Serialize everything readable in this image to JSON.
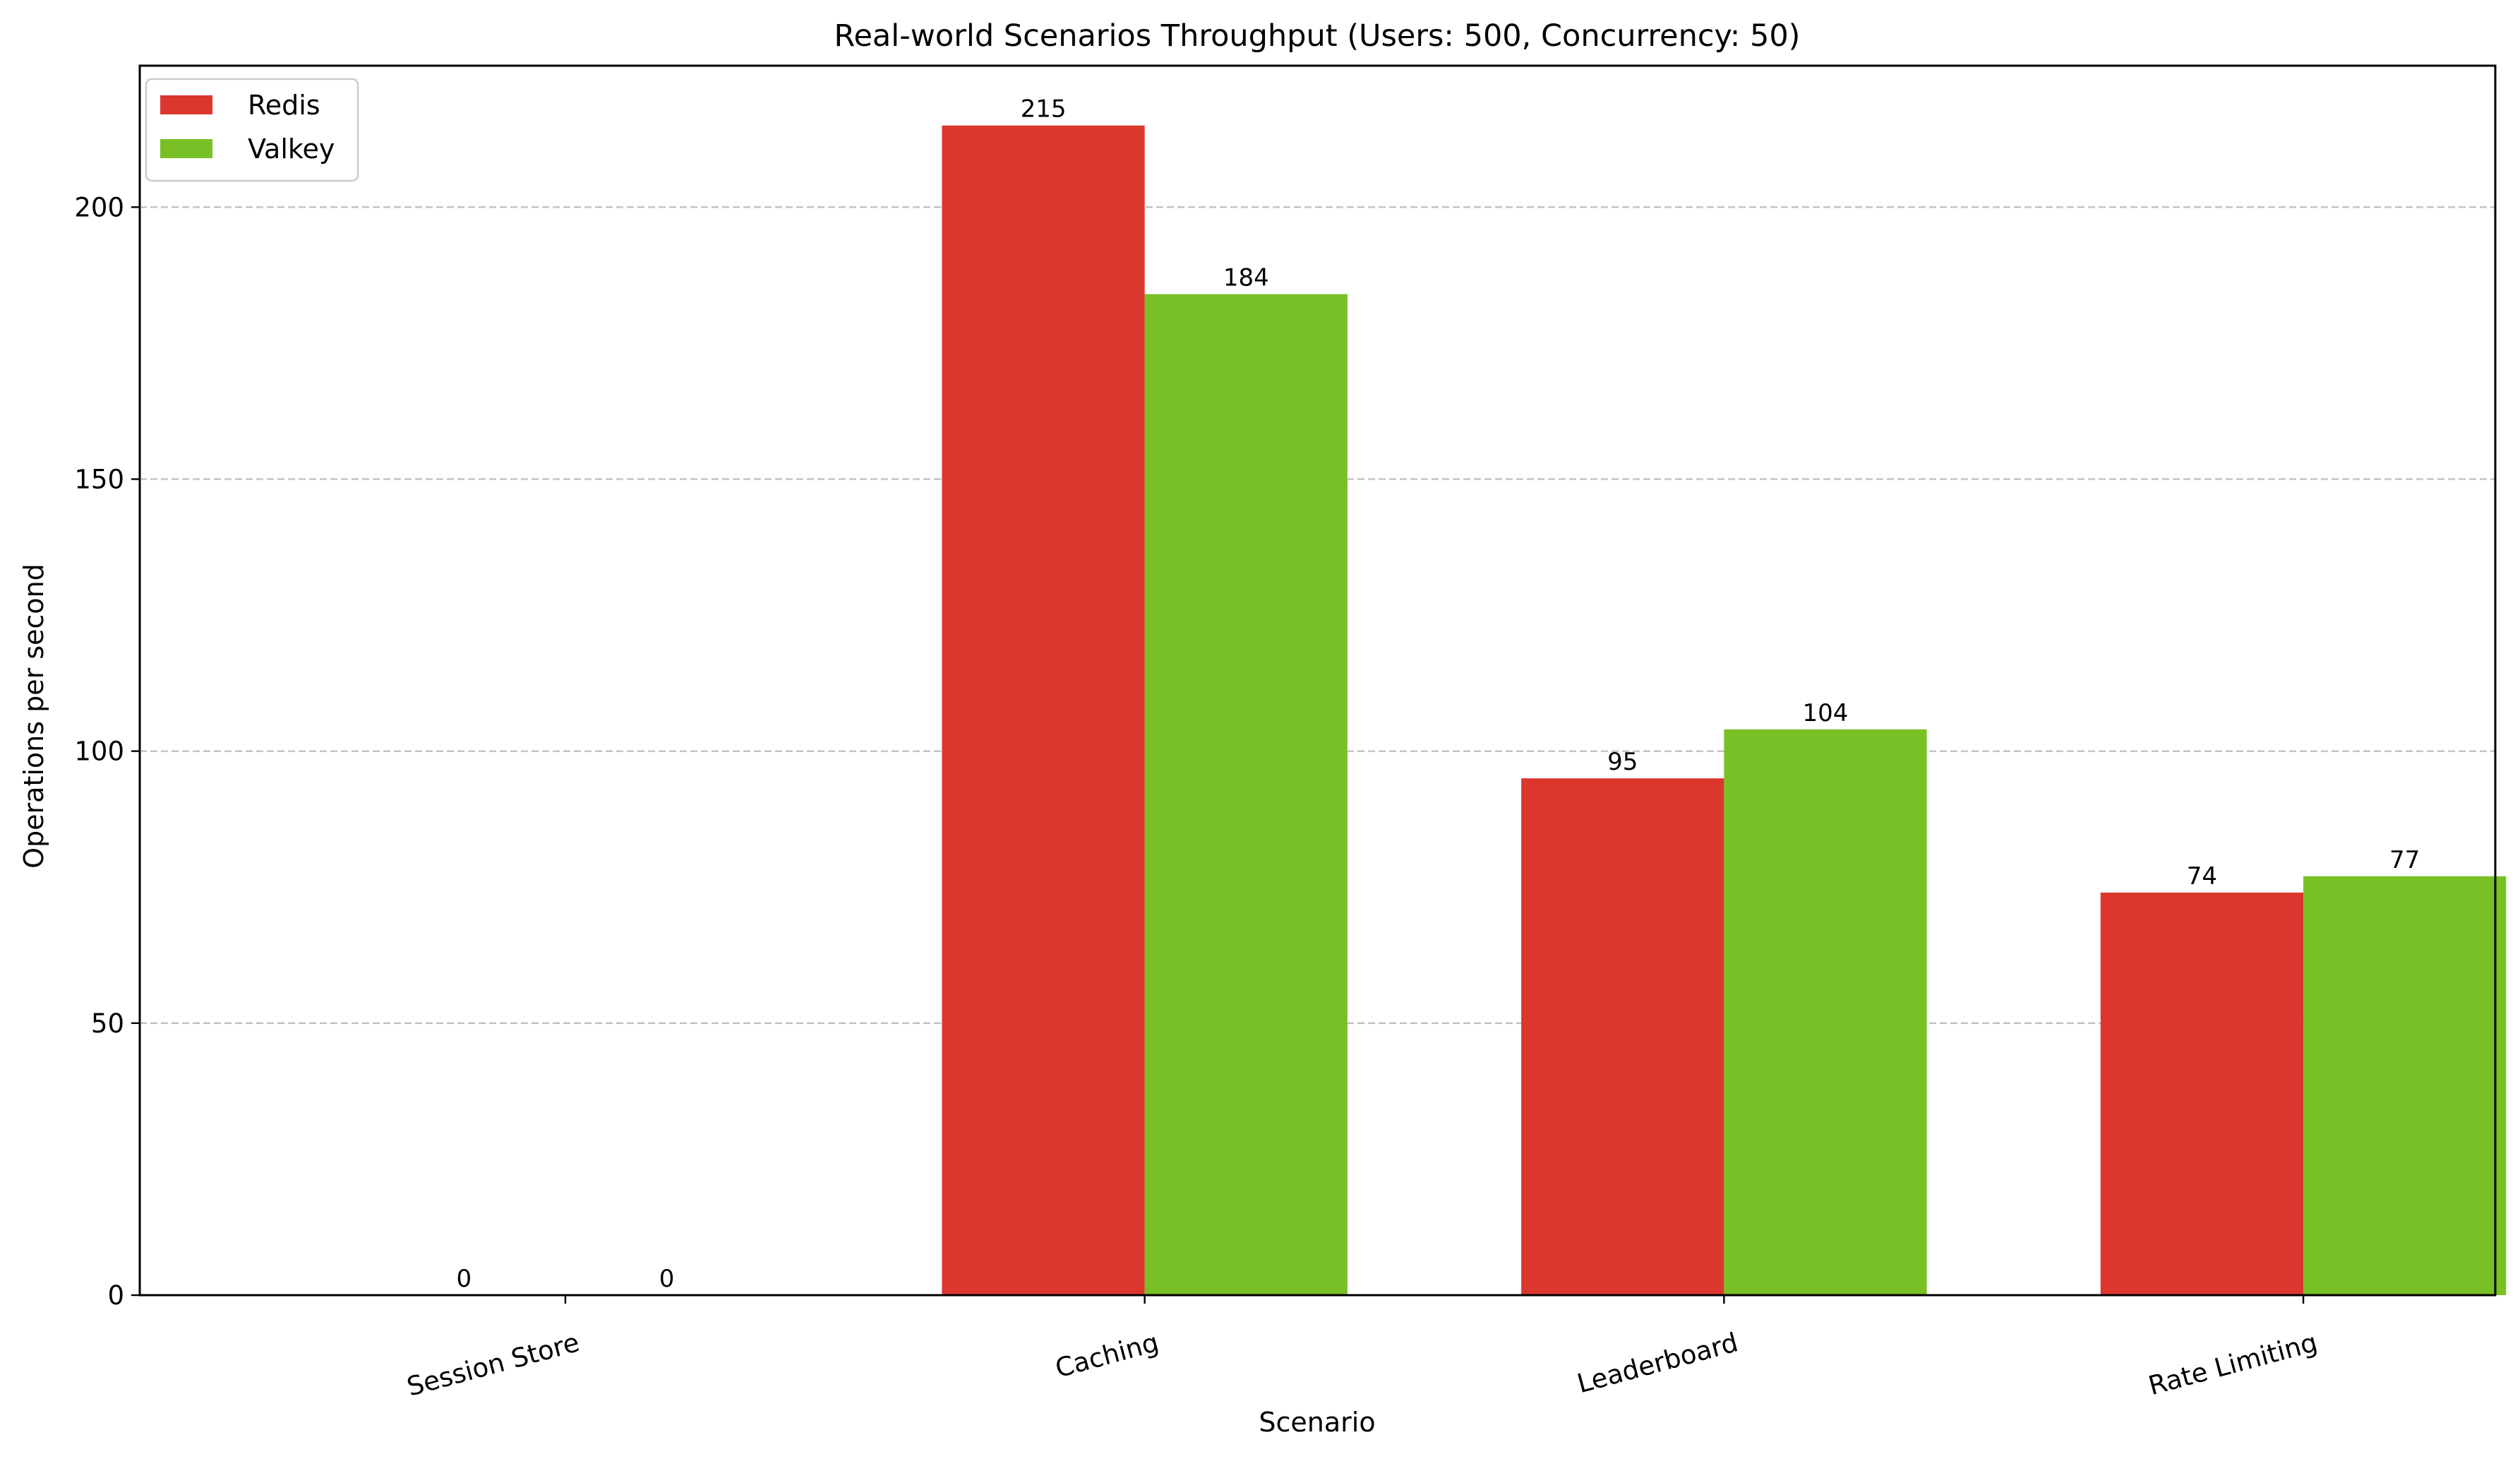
{
  "chart_data": {
    "type": "bar",
    "title": "Real-world Scenarios Throughput (Users: 500, Concurrency: 50)",
    "xlabel": "Scenario",
    "ylabel": "Operations per second",
    "categories": [
      "Session Store",
      "Caching",
      "Leaderboard",
      "Rate Limiting"
    ],
    "series": [
      {
        "name": "Redis",
        "color": "#db372f",
        "values": [
          0,
          215,
          95,
          74
        ],
        "labels": [
          "0",
          "215",
          "95",
          "74"
        ]
      },
      {
        "name": "Valkey",
        "color": "#78c025",
        "values": [
          0,
          184,
          104,
          77
        ],
        "labels": [
          "0",
          "184",
          "104",
          "77"
        ]
      }
    ],
    "ylim": [
      0,
      226
    ],
    "yticks": [
      0,
      50,
      100,
      150,
      200
    ],
    "ytick_labels": [
      "0",
      "50",
      "100",
      "150",
      "200"
    ],
    "grid": "y-dashed",
    "legend_position": "top-left",
    "xtick_rotation": "slanted"
  }
}
